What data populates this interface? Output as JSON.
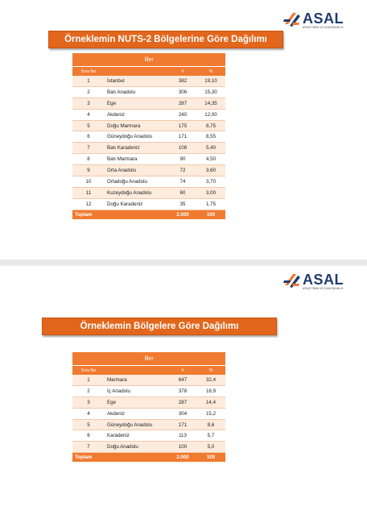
{
  "brand": {
    "name": "ASAL",
    "tagline": "ARAŞTIRMA VE DANIŞMANLIK"
  },
  "colors": {
    "accent": "#f07a30",
    "title_bg": "#e2661c",
    "logo_blue": "#1f3c6e"
  },
  "slide1": {
    "title": "Örneklemin NUTS-2 Bölgelerine Göre Dağılımı",
    "table": {
      "group_header": "İller",
      "columns": [
        "Sıra No",
        "",
        "#",
        "%"
      ],
      "rows": [
        [
          "1",
          "İstanbul",
          "382",
          "19,10"
        ],
        [
          "2",
          "Batı Anadolu",
          "306",
          "15,30"
        ],
        [
          "3",
          "Ege",
          "287",
          "14,35"
        ],
        [
          "4",
          "Akdeniz",
          "240",
          "12,00"
        ],
        [
          "5",
          "Doğu Marmara",
          "175",
          "8,75"
        ],
        [
          "6",
          "Güneydoğu Anadolu",
          "171",
          "8,55"
        ],
        [
          "7",
          "Batı Karadeniz",
          "108",
          "5,40"
        ],
        [
          "8",
          "Batı Marmara",
          "90",
          "4,50"
        ],
        [
          "9",
          "Orta Anadolu",
          "72",
          "3,60"
        ],
        [
          "10",
          "Ortadoğu Anadolu",
          "74",
          "3,70"
        ],
        [
          "11",
          "Kuzeydoğu Anadolu",
          "60",
          "3,00"
        ],
        [
          "12",
          "Doğu Karadeniz",
          "35",
          "1,75"
        ]
      ],
      "total": [
        "Toplam",
        "",
        "2.000",
        "100"
      ]
    }
  },
  "slide2": {
    "title": "Örneklemin Bölgelere Göre Dağılımı",
    "table": {
      "group_header": "İller",
      "columns": [
        "Sıra No",
        "",
        "#",
        "%"
      ],
      "rows": [
        [
          "1",
          "Marmara",
          "647",
          "32,4"
        ],
        [
          "2",
          "İç Anadolu",
          "378",
          "18,9"
        ],
        [
          "3",
          "Ege",
          "287",
          "14,4"
        ],
        [
          "4",
          "Akdeniz",
          "304",
          "15,2"
        ],
        [
          "5",
          "Güneydoğu Anadolu",
          "171",
          "8,6"
        ],
        [
          "6",
          "Karadeniz",
          "113",
          "5,7"
        ],
        [
          "7",
          "Doğu Anadolu",
          "100",
          "5,0"
        ]
      ],
      "total": [
        "Toplam",
        "",
        "2.000",
        "100"
      ]
    }
  }
}
